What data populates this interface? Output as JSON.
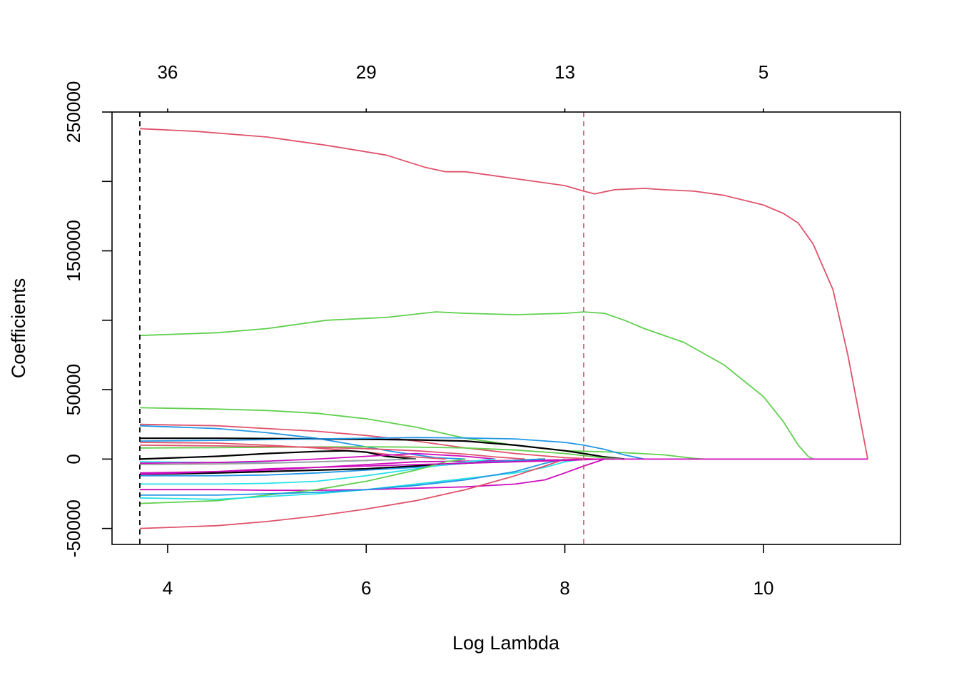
{
  "chart_data": {
    "type": "line",
    "title": "",
    "xlabel": "Log Lambda",
    "ylabel": "Coefficients",
    "xlim": [
      3.44,
      11.38
    ],
    "ylim": [
      -61500,
      250000
    ],
    "x_ticks": [
      4,
      6,
      8,
      10
    ],
    "y_ticks": [
      -50000,
      0,
      50000,
      150000,
      250000
    ],
    "top_axis": {
      "positions": [
        4,
        6,
        8,
        10
      ],
      "labels": [
        "36",
        "29",
        "13",
        "5"
      ]
    },
    "grid": false,
    "legend": "none",
    "reference_lines": [
      {
        "x": 3.72,
        "color": "#000000",
        "style": "dashed"
      },
      {
        "x": 8.19,
        "color": "#DF536B",
        "style": "dashed"
      }
    ],
    "series": [
      {
        "color": "#DF536B",
        "x": [
          3.72,
          4.3,
          5.0,
          5.6,
          6.2,
          6.6,
          6.8,
          7.0,
          7.5,
          8.0,
          8.19,
          8.3,
          8.5,
          8.8,
          9.0,
          9.3,
          9.6,
          10.0,
          10.2,
          10.35,
          10.5,
          10.7,
          10.85,
          11.05
        ],
        "y": [
          238000,
          236000,
          232000,
          226000,
          219000,
          210000,
          207000,
          207000,
          202000,
          197000,
          193000,
          191000,
          194000,
          195000,
          194000,
          193000,
          190000,
          183000,
          177000,
          170000,
          155000,
          122000,
          75000,
          0
        ]
      },
      {
        "color": "#61D04F",
        "x": [
          3.72,
          4.5,
          5.0,
          5.6,
          6.2,
          6.7,
          7.0,
          7.5,
          8.0,
          8.19,
          8.4,
          8.6,
          8.8,
          9.2,
          9.6,
          10.0,
          10.2,
          10.35,
          10.45,
          10.5
        ],
        "y": [
          89000,
          91000,
          94000,
          100000,
          102000,
          106000,
          105000,
          104000,
          105000,
          106000,
          105000,
          100000,
          94000,
          84000,
          68000,
          45000,
          27000,
          10000,
          2000,
          0
        ]
      },
      {
        "color": "#61D04F",
        "x": [
          3.72,
          4.5,
          5.0,
          5.5,
          6.0,
          6.5,
          7.0,
          7.5,
          8.0,
          8.5,
          9.0,
          9.3,
          9.4
        ],
        "y": [
          37000,
          36000,
          35000,
          33000,
          29000,
          23000,
          15000,
          10000,
          6000,
          5000,
          3000,
          500,
          0
        ]
      },
      {
        "color": "#DF536B",
        "x": [
          3.72,
          4.5,
          5.0,
          5.5,
          6.0,
          6.5,
          7.0,
          7.5,
          8.0,
          8.3,
          8.5
        ],
        "y": [
          25000,
          24000,
          22000,
          20000,
          17000,
          13000,
          8000,
          4000,
          1000,
          0,
          0
        ]
      },
      {
        "color": "#2297E6",
        "x": [
          3.72,
          4.5,
          5.0,
          5.5,
          5.9,
          6.3,
          6.7,
          7.0
        ],
        "y": [
          24000,
          22000,
          19000,
          15000,
          10000,
          5000,
          1000,
          0
        ]
      },
      {
        "color": "#000000",
        "x": [
          3.72,
          4.5,
          5.0,
          5.5,
          6.0,
          6.5,
          7.0,
          7.5,
          8.0,
          8.19,
          8.4,
          8.6
        ],
        "y": [
          15000,
          15000,
          14800,
          14500,
          14200,
          13800,
          13000,
          10000,
          6000,
          4000,
          1500,
          0
        ]
      },
      {
        "color": "#2297E6",
        "x": [
          3.72,
          4.5,
          5.0,
          5.5,
          6.0,
          6.5,
          7.0,
          7.5,
          8.0,
          8.19,
          8.4,
          8.6,
          8.8
        ],
        "y": [
          13000,
          13500,
          14000,
          14500,
          15000,
          15500,
          15200,
          14500,
          12000,
          10000,
          7000,
          3000,
          0
        ]
      },
      {
        "color": "#DF536B",
        "x": [
          3.72,
          4.5,
          5.0,
          5.5,
          6.0,
          6.4,
          6.8
        ],
        "y": [
          12000,
          11500,
          10000,
          8000,
          5000,
          2000,
          0
        ]
      },
      {
        "color": "#61D04F",
        "x": [
          3.72,
          4.5,
          5.0,
          5.5,
          6.0,
          6.5,
          7.0,
          7.5,
          8.0,
          8.19,
          8.4,
          8.6
        ],
        "y": [
          8000,
          8200,
          8500,
          8700,
          8800,
          8600,
          8000,
          6500,
          4000,
          2500,
          800,
          0
        ]
      },
      {
        "color": "#DF536B",
        "x": [
          3.72,
          4.5,
          5.0,
          5.5,
          6.0,
          6.5,
          7.0,
          7.3,
          7.6
        ],
        "y": [
          10000,
          9500,
          9000,
          8500,
          7500,
          6000,
          3500,
          1500,
          0
        ]
      },
      {
        "color": "#000000",
        "x": [
          3.72,
          4.5,
          5.0,
          5.5,
          5.8,
          6.0,
          6.2,
          6.5
        ],
        "y": [
          0,
          2000,
          4000,
          5500,
          6000,
          5000,
          2000,
          0
        ]
      },
      {
        "color": "#28E2E5",
        "x": [
          3.72,
          4.5,
          5.0,
          5.5,
          6.0,
          6.5
        ],
        "y": [
          -2000,
          -2500,
          -2800,
          -2000,
          -1000,
          0
        ]
      },
      {
        "color": "#CD0BBC",
        "x": [
          3.72,
          4.5,
          5.0,
          5.5,
          6.0,
          6.5,
          7.0,
          7.3
        ],
        "y": [
          -3000,
          -2500,
          -1500,
          0,
          2000,
          4000,
          2000,
          0
        ]
      },
      {
        "color": "#9E9E9E",
        "x": [
          3.72,
          4.5,
          5.0,
          5.5,
          6.0,
          6.5
        ],
        "y": [
          -4000,
          -3500,
          -3000,
          -2000,
          -1000,
          0
        ]
      },
      {
        "color": "#000000",
        "x": [
          3.72,
          4.5,
          5.0,
          5.5,
          6.0,
          6.5,
          7.0,
          7.5,
          7.8
        ],
        "y": [
          -11000,
          -10000,
          -9000,
          -8000,
          -7000,
          -5000,
          -3000,
          -1000,
          0
        ]
      },
      {
        "color": "#CD0BBC",
        "x": [
          3.72,
          4.5,
          5.0,
          5.5,
          6.0,
          6.5,
          7.0,
          7.5,
          8.0,
          8.19,
          8.4
        ],
        "y": [
          -10000,
          -9000,
          -8000,
          -6000,
          -4000,
          -2000,
          -1500,
          -1000,
          -500,
          -200,
          0
        ]
      },
      {
        "color": "#2297E6",
        "x": [
          3.72,
          4.5,
          5.0,
          5.5,
          6.0,
          6.5,
          7.0,
          7.5,
          7.8
        ],
        "y": [
          -12000,
          -12000,
          -11500,
          -10000,
          -8000,
          -6000,
          -3000,
          -1000,
          0
        ]
      },
      {
        "color": "#28E2E5",
        "x": [
          3.72,
          4.5,
          5.0,
          5.5,
          6.0,
          6.5,
          7.0,
          7.3
        ],
        "y": [
          -18000,
          -18000,
          -17500,
          -16000,
          -12000,
          -7000,
          -2000,
          0
        ]
      },
      {
        "color": "#CD0BBC",
        "x": [
          3.72,
          4.5,
          5.0,
          5.5,
          6.0,
          6.5,
          7.0,
          7.5,
          7.8,
          8.0,
          8.19,
          8.4
        ],
        "y": [
          -22000,
          -22000,
          -22500,
          -22500,
          -22000,
          -21000,
          -20000,
          -18000,
          -15000,
          -10000,
          -5000,
          0
        ]
      },
      {
        "color": "#61D04F",
        "x": [
          3.72,
          4.5,
          5.0,
          5.5,
          6.0,
          6.5,
          6.8,
          7.0
        ],
        "y": [
          -32000,
          -30000,
          -26000,
          -22000,
          -16000,
          -8000,
          -2000,
          0
        ]
      },
      {
        "color": "#28E2E5",
        "x": [
          3.72,
          4.5,
          5.0,
          5.5,
          6.0,
          6.5,
          7.0,
          7.5,
          7.8,
          8.0,
          8.19
        ],
        "y": [
          -28000,
          -29000,
          -27000,
          -25000,
          -22000,
          -18000,
          -14000,
          -10000,
          -6000,
          -2000,
          0
        ]
      },
      {
        "color": "#2297E6",
        "x": [
          3.72,
          4.5,
          5.0,
          5.5,
          6.0,
          6.5,
          7.0,
          7.5,
          7.8,
          8.0
        ],
        "y": [
          -26000,
          -26000,
          -25000,
          -24000,
          -22000,
          -19000,
          -15000,
          -9000,
          -3000,
          0
        ]
      },
      {
        "color": "#DF536B",
        "x": [
          3.72,
          4.5,
          5.0,
          5.5,
          6.0,
          6.5,
          7.0,
          7.5,
          7.8,
          8.0
        ],
        "y": [
          -50000,
          -48000,
          -45000,
          -41000,
          -36000,
          -30000,
          -22000,
          -12000,
          -5000,
          0
        ]
      },
      {
        "color": "#CD0BBC",
        "x": [
          3.72,
          4.5,
          5.0,
          5.5,
          6.0,
          6.5,
          7.0,
          7.5,
          8.0,
          8.19,
          8.4,
          8.6,
          9.0,
          9.5,
          10.0,
          10.5,
          11.05
        ],
        "y": [
          -11000,
          -9000,
          -7000,
          -6000,
          -5000,
          -4000,
          -3000,
          -2000,
          -1000,
          -500,
          0,
          0,
          0,
          0,
          0,
          0,
          0
        ]
      }
    ]
  }
}
